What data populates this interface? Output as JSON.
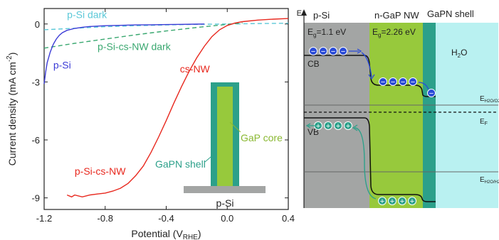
{
  "chart_data": {
    "type": "line",
    "xlabel": "Potential (V",
    "xlabel_sub": "RHE",
    "xlabel_close": ")",
    "ylabel": "Current density (mA cm",
    "ylabel_sup": "-2",
    "ylabel_close": ")",
    "xlim": [
      -1.2,
      0.4
    ],
    "ylim": [
      -9.6,
      0.8
    ],
    "x_ticks": [
      -1.2,
      -0.8,
      -0.4,
      0.0,
      0.4
    ],
    "x_tick_labels": [
      "-1.2",
      "-0.8",
      "-0.4",
      "0.0",
      "0.4"
    ],
    "y_ticks": [
      0,
      -3,
      -6,
      -9
    ],
    "y_tick_labels": [
      "0",
      "-3",
      "-6",
      "-9"
    ],
    "series": [
      {
        "name": "p-Si dark",
        "color": "#5bc8d8",
        "dash": true,
        "points": [
          [
            -1.2,
            -0.3
          ],
          [
            -1.0,
            -0.22
          ],
          [
            -0.8,
            -0.14
          ],
          [
            -0.6,
            -0.09
          ],
          [
            -0.4,
            -0.05
          ],
          [
            -0.2,
            -0.02
          ],
          [
            0.0,
            0.0
          ],
          [
            0.2,
            0.02
          ],
          [
            0.4,
            0.04
          ]
        ]
      },
      {
        "name": "p-Si-cs-NW dark",
        "color": "#3aa870",
        "dash": true,
        "points": [
          [
            -1.2,
            -1.25
          ],
          [
            -1.0,
            -1.0
          ],
          [
            -0.8,
            -0.78
          ],
          [
            -0.6,
            -0.56
          ],
          [
            -0.4,
            -0.36
          ],
          [
            -0.2,
            -0.18
          ],
          [
            0.0,
            -0.02
          ],
          [
            0.1,
            0.05
          ]
        ]
      },
      {
        "name": "p-Si",
        "color": "#3b3bd6",
        "dash": false,
        "points": [
          [
            -1.2,
            -3.1
          ],
          [
            -1.19,
            -2.5
          ],
          [
            -1.18,
            -2.0
          ],
          [
            -1.16,
            -1.45
          ],
          [
            -1.14,
            -1.05
          ],
          [
            -1.12,
            -0.78
          ],
          [
            -1.1,
            -0.58
          ],
          [
            -1.08,
            -0.45
          ],
          [
            -1.05,
            -0.33
          ],
          [
            -1.0,
            -0.23
          ],
          [
            -0.95,
            -0.17
          ],
          [
            -0.9,
            -0.13
          ],
          [
            -0.8,
            -0.09
          ],
          [
            -0.7,
            -0.07
          ],
          [
            -0.6,
            -0.05
          ],
          [
            -0.5,
            -0.04
          ],
          [
            -0.4,
            -0.03
          ],
          [
            -0.3,
            -0.02
          ],
          [
            -0.2,
            -0.01
          ],
          [
            -0.15,
            0.0
          ]
        ]
      },
      {
        "name": "cs-NW",
        "color": "#e8281e",
        "dash": false,
        "points": [
          [
            -1.05,
            -8.85
          ],
          [
            -1.02,
            -8.95
          ],
          [
            -1.0,
            -8.85
          ],
          [
            -0.95,
            -8.95
          ],
          [
            -0.9,
            -8.85
          ],
          [
            -0.85,
            -8.8
          ],
          [
            -0.8,
            -8.75
          ],
          [
            -0.75,
            -8.65
          ],
          [
            -0.7,
            -8.5
          ],
          [
            -0.65,
            -8.25
          ],
          [
            -0.6,
            -7.85
          ],
          [
            -0.55,
            -7.35
          ],
          [
            -0.5,
            -6.65
          ],
          [
            -0.45,
            -5.85
          ],
          [
            -0.4,
            -5.0
          ],
          [
            -0.35,
            -4.1
          ],
          [
            -0.3,
            -3.25
          ],
          [
            -0.25,
            -2.45
          ],
          [
            -0.2,
            -1.75
          ],
          [
            -0.15,
            -1.15
          ],
          [
            -0.1,
            -0.65
          ],
          [
            -0.05,
            -0.3
          ],
          [
            0.0,
            -0.08
          ],
          [
            0.05,
            0.05
          ],
          [
            0.1,
            0.12
          ],
          [
            0.2,
            0.2
          ],
          [
            0.3,
            0.25
          ],
          [
            0.4,
            0.28
          ]
        ]
      }
    ],
    "annotations": [
      {
        "text": "p-Si dark",
        "color": "#5bc8d8",
        "x": -1.05,
        "y": 0.3
      },
      {
        "text": "p-Si-cs-NW dark",
        "color": "#3aa870",
        "x": -0.85,
        "y": -1.35
      },
      {
        "text": "p-Si",
        "color": "#3b3bd6",
        "x": -1.14,
        "y": -2.3
      },
      {
        "text": "cs-NW",
        "color": "#e8281e",
        "x": -0.31,
        "y": -2.5
      },
      {
        "text": "p-Si-cs-NW",
        "color": "#e8281e",
        "x": -1.0,
        "y": -7.8
      }
    ]
  },
  "inset": {
    "shell_label": "GaPN shell",
    "core_label": "GaP core",
    "substrate_label": "p-Si"
  },
  "band_diagram": {
    "axis_label": "E",
    "regions": [
      {
        "name": "p-Si",
        "color": "#a3a5a4"
      },
      {
        "name": "n-GaP NW",
        "color": "#97c93c"
      },
      {
        "name": "GaPN shell",
        "color": "#2ca08a"
      },
      {
        "name": "H2O",
        "color": "#b9f1f1"
      }
    ],
    "psi_label": "p-Si",
    "psi_gap": "E",
    "psi_gap_sub": "g",
    "psi_gap_val": "=1.1 eV",
    "gap_label": "n-GaP NW",
    "gap_gap": "E",
    "gap_gap_sub": "g",
    "gap_gap_val": "=2.26 eV",
    "shell_label": "GaPN shell",
    "water_label": "H",
    "water_sub": "2",
    "water_end": "O",
    "cb_label": "CB",
    "vb_label": "VB",
    "ef_label": "E",
    "ef_sub": "F",
    "redox_top": "E",
    "redox_top_sub": "H2O/O2",
    "redox_bottom": "E",
    "redox_bottom_sub": "H2O/H2",
    "electron_symbol": "−",
    "hole_symbol": "+",
    "electron_color": "#2a4bd7",
    "hole_color": "#2ca08a"
  }
}
